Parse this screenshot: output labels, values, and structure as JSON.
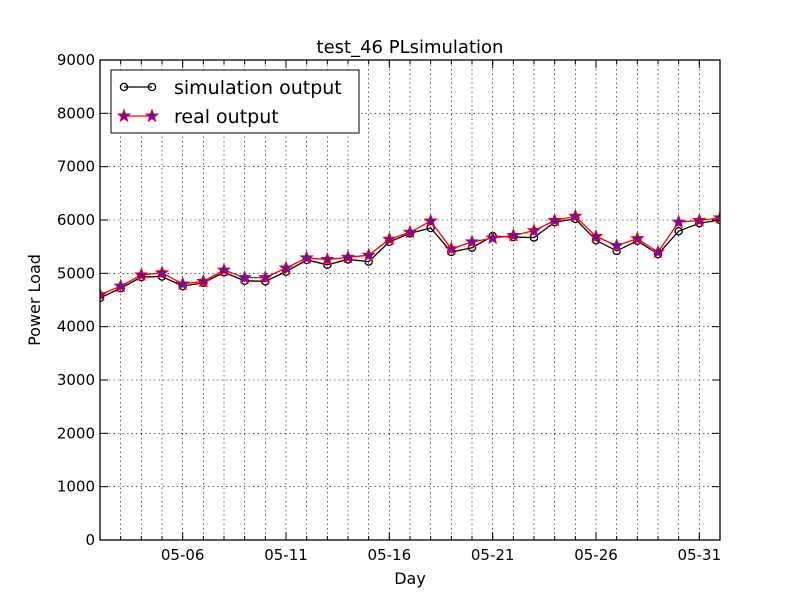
{
  "chart_data": {
    "type": "line",
    "title": "test_46 PLsimulation",
    "xlabel": "Day",
    "ylabel": "Power Load",
    "x": [
      "05-02",
      "05-03",
      "05-04",
      "05-05",
      "05-06",
      "05-07",
      "05-08",
      "05-09",
      "05-10",
      "05-11",
      "05-12",
      "05-13",
      "05-14",
      "05-15",
      "05-16",
      "05-17",
      "05-18",
      "05-19",
      "05-20",
      "05-21",
      "05-22",
      "05-23",
      "05-24",
      "05-25",
      "05-26",
      "05-27",
      "05-28",
      "05-29",
      "05-30",
      "05-31",
      "06-01"
    ],
    "xlim": [
      "05-02",
      "06-01"
    ],
    "xticks": [
      "05-06",
      "05-11",
      "05-16",
      "05-21",
      "05-26",
      "05-31"
    ],
    "ylim": [
      0,
      9000
    ],
    "yticks": [
      0,
      1000,
      2000,
      3000,
      4000,
      5000,
      6000,
      7000,
      8000,
      9000
    ],
    "grid": true,
    "legend_position": "top-left",
    "series": [
      {
        "name": "simulation output",
        "color": "#000000",
        "marker": "circle",
        "values": [
          4540,
          4720,
          4930,
          4940,
          4760,
          4820,
          5020,
          4860,
          4850,
          5030,
          5250,
          5160,
          5260,
          5220,
          5590,
          5750,
          5850,
          5400,
          5480,
          5700,
          5680,
          5670,
          5960,
          6020,
          5620,
          5420,
          5610,
          5360,
          5790,
          5940,
          6000
        ]
      },
      {
        "name": "real output",
        "color": "#ff0000",
        "marker_color": "#6a0dad",
        "marker": "star",
        "values": [
          4600,
          4760,
          4970,
          5010,
          4800,
          4850,
          5060,
          4920,
          4920,
          5100,
          5290,
          5260,
          5300,
          5340,
          5640,
          5770,
          5980,
          5460,
          5590,
          5660,
          5710,
          5800,
          5990,
          6070,
          5690,
          5520,
          5650,
          5400,
          5960,
          5990,
          6040
        ]
      }
    ]
  }
}
